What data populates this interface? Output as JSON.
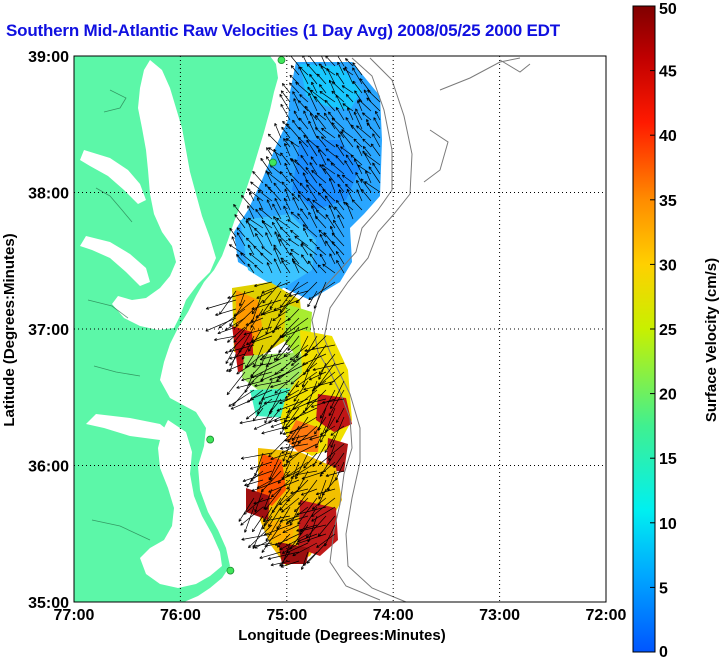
{
  "title": "Southern Mid-Atlantic Raw Velocities (1 Day Avg) 2008/05/25 2000 EDT",
  "title_color": "#1010e0",
  "x_axis": {
    "label": "Longitude (Degrees:Minutes)",
    "ticks": [
      {
        "value": -77,
        "label": "77:00"
      },
      {
        "value": -76,
        "label": "76:00"
      },
      {
        "value": -75,
        "label": "75:00"
      },
      {
        "value": -74,
        "label": "74:00"
      },
      {
        "value": -73,
        "label": "73:00"
      },
      {
        "value": -72,
        "label": "72:00"
      }
    ],
    "range": [
      -77,
      -72
    ]
  },
  "y_axis": {
    "label": "Latitude (Degrees:Minutes)",
    "ticks": [
      {
        "value": 39,
        "label": "39:00"
      },
      {
        "value": 38,
        "label": "38:00"
      },
      {
        "value": 37,
        "label": "37:00"
      },
      {
        "value": 36,
        "label": "36:00"
      },
      {
        "value": 35,
        "label": "35:00"
      }
    ],
    "range": [
      35,
      39
    ]
  },
  "colorbar": {
    "label": "Surface Velocity (cm/s)",
    "range": [
      0,
      50
    ],
    "ticks": [
      {
        "value": 50,
        "label": "50"
      },
      {
        "value": 45,
        "label": "45"
      },
      {
        "value": 40,
        "label": "40"
      },
      {
        "value": 35,
        "label": "35"
      },
      {
        "value": 30,
        "label": "30"
      },
      {
        "value": 25,
        "label": "25"
      },
      {
        "value": 20,
        "label": "20"
      },
      {
        "value": 15,
        "label": "15"
      },
      {
        "value": 10,
        "label": "10"
      },
      {
        "value": 5,
        "label": "5"
      },
      {
        "value": 0,
        "label": "0"
      }
    ]
  },
  "colors": {
    "land": "#5cf7a8",
    "ocean": "#ffffff",
    "grid": "#000000",
    "station": "#3fe65a",
    "arrow": "#000000",
    "bathymetry": "#7a7a7a"
  },
  "stations": [
    {
      "lon": -75.05,
      "lat": 38.97
    },
    {
      "lon": -75.13,
      "lat": 38.22
    },
    {
      "lon": -75.72,
      "lat": 36.19
    },
    {
      "lon": -75.53,
      "lat": 35.23
    }
  ]
}
